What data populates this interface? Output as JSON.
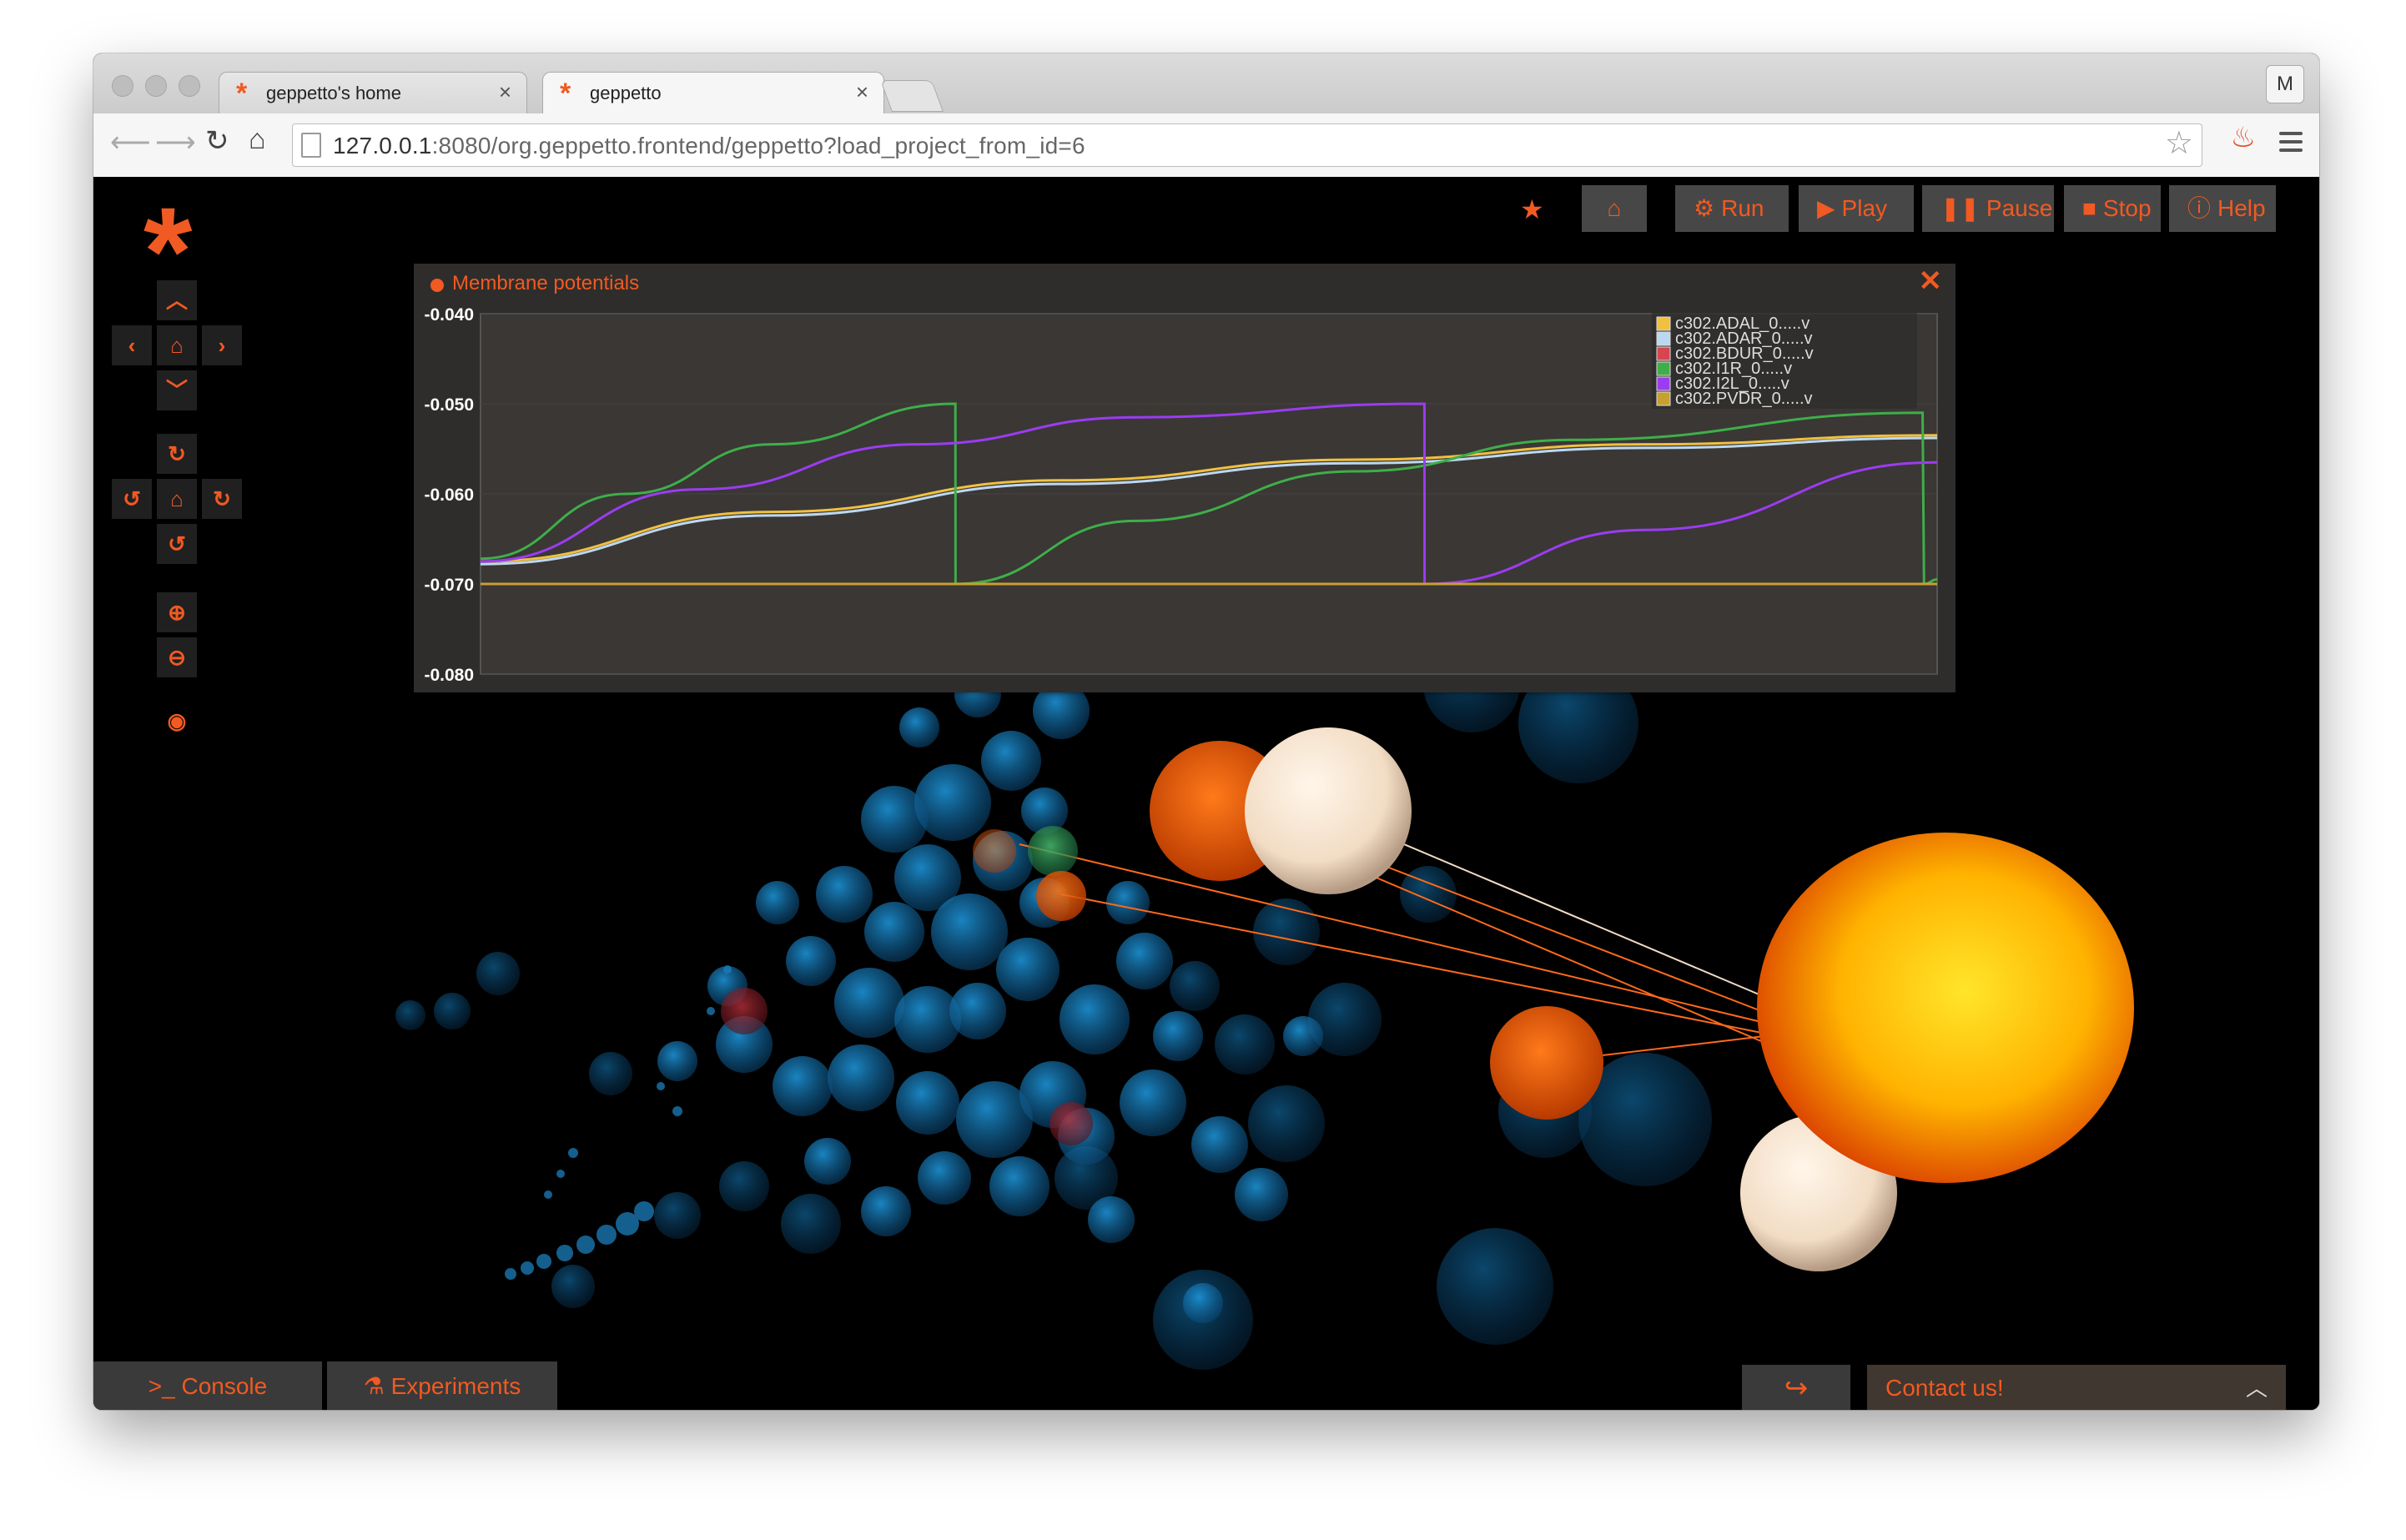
{
  "browser": {
    "tabs": [
      {
        "title": "geppetto's home",
        "active": false
      },
      {
        "title": "geppetto",
        "active": true
      }
    ],
    "profile_initial": "M",
    "url_host": "127.0.0.1",
    "url_rest": ":8080/org.geppetto.frontend/geppetto?load_project_from_id=6"
  },
  "toolbar": {
    "run": "Run",
    "play": "Play",
    "pause": "Pause",
    "stop": "Stop",
    "help": "Help"
  },
  "widget": {
    "title": "Membrane potentials"
  },
  "chart_data": {
    "type": "line",
    "title": "Membrane potentials",
    "ylim": [
      -0.08,
      -0.04
    ],
    "xlim": [
      0,
      1
    ],
    "y_ticks": [
      "-0.040",
      "-0.050",
      "-0.060",
      "-0.070",
      "-0.080"
    ],
    "legend_position": "top-right",
    "series": [
      {
        "name": "c302.ADAL_0.....v",
        "color": "#f0c040",
        "x": [
          0.0,
          0.2,
          0.4,
          0.6,
          0.8,
          1.0
        ],
        "y": [
          -0.0675,
          -0.062,
          -0.0585,
          -0.0562,
          -0.0545,
          -0.0535
        ]
      },
      {
        "name": "c302.ADAR_0.....v",
        "color": "#bcd8f0",
        "x": [
          0.0,
          0.2,
          0.4,
          0.6,
          0.8,
          1.0
        ],
        "y": [
          -0.0678,
          -0.0624,
          -0.0589,
          -0.0566,
          -0.0549,
          -0.0538
        ]
      },
      {
        "name": "c302.BDUR_0.....v",
        "color": "#d64550",
        "x": [
          0.0,
          1.0
        ],
        "y": [
          -0.07,
          -0.07
        ]
      },
      {
        "name": "c302.I1R_0.....v",
        "color": "#3fae49",
        "x": [
          0.0,
          0.1,
          0.2,
          0.326,
          0.3261,
          0.45,
          0.6,
          0.75,
          0.99,
          0.991,
          1.0
        ],
        "y": [
          -0.0672,
          -0.06,
          -0.0545,
          -0.05,
          -0.07,
          -0.063,
          -0.0575,
          -0.054,
          -0.051,
          -0.07,
          -0.0695
        ]
      },
      {
        "name": "c302.I2L_0.....v",
        "color": "#9b3cf0",
        "x": [
          0.0,
          0.15,
          0.3,
          0.45,
          0.648,
          0.6481,
          0.8,
          1.0
        ],
        "y": [
          -0.0675,
          -0.0595,
          -0.0545,
          -0.0515,
          -0.05,
          -0.07,
          -0.064,
          -0.0565
        ]
      },
      {
        "name": "c302.PVDR_0.....v",
        "color": "#c8a030",
        "x": [
          0.0,
          1.0
        ],
        "y": [
          -0.07,
          -0.07
        ]
      }
    ]
  },
  "bottom": {
    "console": "Console",
    "experiments": "Experiments",
    "contact": "Contact us!"
  }
}
